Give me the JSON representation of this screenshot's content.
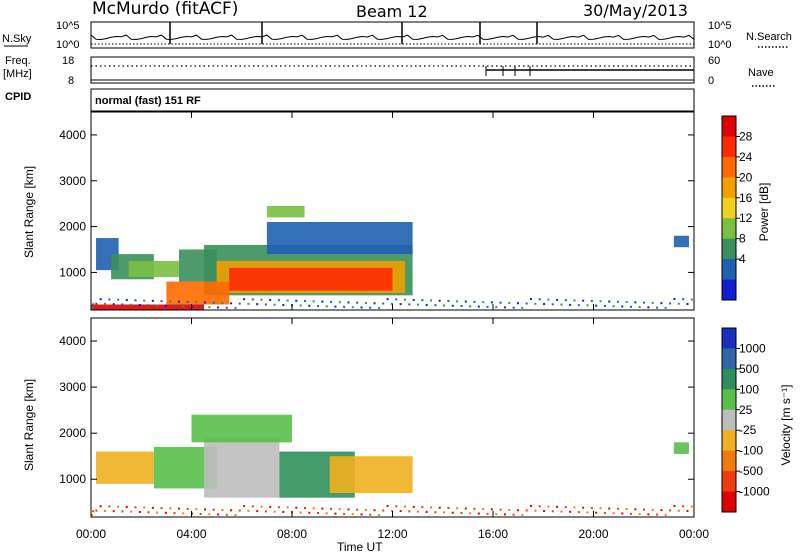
{
  "header": {
    "station": "McMurdo (fitACF)",
    "beam": "Beam 12",
    "date": "30/May/2013"
  },
  "top_panels": {
    "nsky_label": "N.Sky",
    "nsky_ticks": [
      "10^5",
      "10^0"
    ],
    "nsearch_label": "N.Search",
    "nsearch_ticks": [
      "10^5",
      "10^0"
    ],
    "freq_label": "Freq.",
    "freq_unit": "[MHz]",
    "freq_ticks": [
      "18",
      "8"
    ],
    "nave_label": "Nave",
    "nave_ticks": [
      "60",
      "0"
    ],
    "cpid_label": "CPID",
    "cpid_text": "normal (fast) 151 RF"
  },
  "power_colorbar": {
    "label": "Power [dB]",
    "ticks": [
      "28",
      "24",
      "20",
      "16",
      "12",
      "8",
      "4"
    ],
    "colors": [
      "#e00000",
      "#ff2a00",
      "#ff6a00",
      "#f0a000",
      "#f0d020",
      "#7ac043",
      "#3a8f5a",
      "#1f5fb0",
      "#1020d0"
    ]
  },
  "velocity_colorbar": {
    "label": "Velocity [m s⁻¹]",
    "ticks": [
      "1000",
      "500",
      "100",
      "25",
      "-25",
      "-100",
      "-500",
      "-1000"
    ],
    "colors": [
      "#1a2fbf",
      "#2e66a8",
      "#2f8f5a",
      "#58c04a",
      "#bdbdbd",
      "#f0b020",
      "#f07a10",
      "#f03a10",
      "#e00000"
    ]
  },
  "chart_data": [
    {
      "type": "heatmap",
      "title": "Power",
      "ylabel": "Slant Range [km]",
      "xlabel": "Time UT",
      "x_ticks": [
        "00:00",
        "04:00",
        "08:00",
        "12:00",
        "16:00",
        "20:00",
        "00:00"
      ],
      "y_ticks": [
        "1000",
        "2000",
        "3000",
        "4000"
      ],
      "ylim": [
        180,
        4500
      ],
      "xlim_hours": [
        0,
        24
      ],
      "cells": [
        {
          "t0": 0.2,
          "t1": 1.1,
          "r0": 1050,
          "r1": 1750,
          "level": 7
        },
        {
          "t0": 0.8,
          "t1": 2.5,
          "r0": 850,
          "r1": 1400,
          "level": 6
        },
        {
          "t0": 1.5,
          "t1": 3.5,
          "r0": 900,
          "r1": 1250,
          "level": 5
        },
        {
          "t0": 3.5,
          "t1": 5.0,
          "r0": 800,
          "r1": 1500,
          "level": 6
        },
        {
          "t0": 4.5,
          "t1": 12.8,
          "r0": 500,
          "r1": 1600,
          "level": 6
        },
        {
          "t0": 5.0,
          "t1": 12.5,
          "r0": 550,
          "r1": 1250,
          "level": 3
        },
        {
          "t0": 5.5,
          "t1": 12.0,
          "r0": 600,
          "r1": 1100,
          "level": 1
        },
        {
          "t0": 3.0,
          "t1": 5.5,
          "r0": 300,
          "r1": 800,
          "level": 2
        },
        {
          "t0": 0.0,
          "t1": 4.5,
          "r0": 190,
          "r1": 300,
          "level": 0
        },
        {
          "t0": 7.0,
          "t1": 12.8,
          "r0": 1400,
          "r1": 2100,
          "level": 7
        },
        {
          "t0": 7.0,
          "t1": 8.5,
          "r0": 2200,
          "r1": 2450,
          "level": 5
        },
        {
          "t0": 23.2,
          "t1": 23.8,
          "r0": 1550,
          "r1": 1800,
          "level": 7
        }
      ]
    },
    {
      "type": "heatmap",
      "title": "Velocity",
      "ylabel": "Slant Range [km]",
      "xlabel": "Time UT",
      "x_ticks": [
        "00:00",
        "04:00",
        "08:00",
        "12:00",
        "16:00",
        "20:00",
        "00:00"
      ],
      "y_ticks": [
        "1000",
        "2000",
        "3000",
        "4000"
      ],
      "ylim": [
        180,
        4500
      ],
      "xlim_hours": [
        0,
        24
      ],
      "cells": [
        {
          "t0": 0.2,
          "t1": 2.5,
          "r0": 900,
          "r1": 1600,
          "level": 5
        },
        {
          "t0": 2.5,
          "t1": 5.0,
          "r0": 800,
          "r1": 1700,
          "level": 3
        },
        {
          "t0": 4.5,
          "t1": 7.5,
          "r0": 600,
          "r1": 1900,
          "level": 4
        },
        {
          "t0": 7.5,
          "t1": 10.5,
          "r0": 600,
          "r1": 1600,
          "level": 2
        },
        {
          "t0": 9.5,
          "t1": 12.8,
          "r0": 700,
          "r1": 1500,
          "level": 5
        },
        {
          "t0": 4.0,
          "t1": 8.0,
          "r0": 1800,
          "r1": 2400,
          "level": 3
        },
        {
          "t0": 23.2,
          "t1": 23.8,
          "r0": 1550,
          "r1": 1800,
          "level": 3
        }
      ]
    }
  ]
}
